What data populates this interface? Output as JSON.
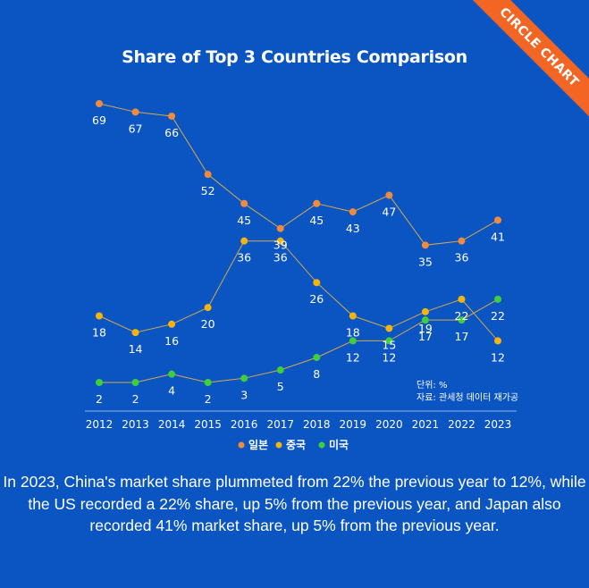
{
  "header": {
    "title": "Share of Top 3 Countries Comparison",
    "badge": "CIRCLE CHART"
  },
  "notes": {
    "unit": "단위: %",
    "source": "자료: 관세청 데이터 재가공"
  },
  "caption": "In 2023, China's market share plummeted from 22% the previous year to 12%, while the US recorded a 22% share, up 5% from the previous year, and Japan also recorded  41% market share, up 5%  from the previous year.",
  "colors": {
    "background": "#0b55c2",
    "japan": "#f28a3c",
    "china": "#f5b30e",
    "usa": "#3ecf3a",
    "line": "#d4a94a",
    "badge": "#f26522"
  },
  "chart_data": {
    "type": "line",
    "title": "Share of Top 3 Countries Comparison",
    "xlabel": "",
    "ylabel": "단위: %",
    "ylim": [
      0,
      75
    ],
    "categories": [
      "2012",
      "2013",
      "2014",
      "2015",
      "2016",
      "2017",
      "2018",
      "2019",
      "2020",
      "2021",
      "2022",
      "2023"
    ],
    "series": [
      {
        "name": "일본",
        "color": "#f28a3c",
        "values": [
          69,
          67,
          66,
          52,
          45,
          39,
          45,
          43,
          47,
          35,
          36,
          41
        ]
      },
      {
        "name": "중국",
        "color": "#f5b30e",
        "values": [
          18,
          14,
          16,
          20,
          36,
          36,
          26,
          18,
          15,
          19,
          22,
          12
        ]
      },
      {
        "name": "미국",
        "color": "#3ecf3a",
        "values": [
          2,
          2,
          4,
          2,
          3,
          5,
          8,
          12,
          12,
          17,
          17,
          22
        ]
      }
    ],
    "legend": "bottom-center"
  }
}
